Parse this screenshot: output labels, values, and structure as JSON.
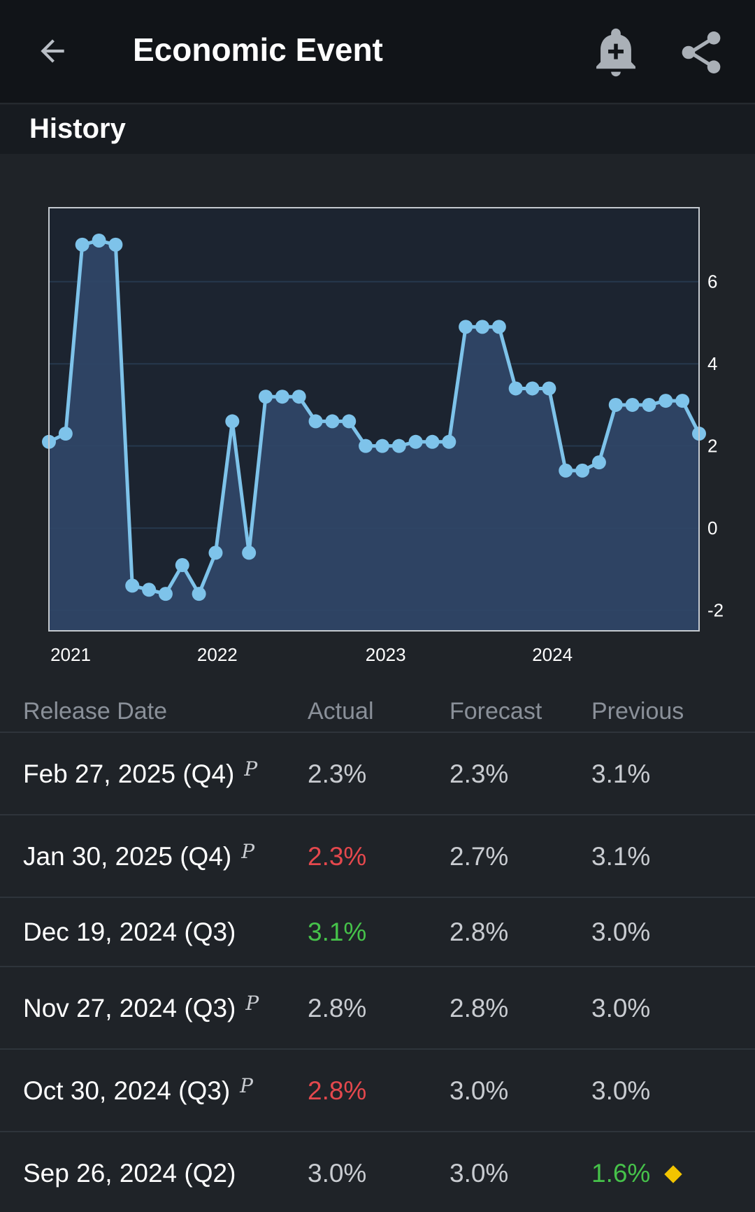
{
  "header": {
    "title": "Economic Event",
    "back_icon": "arrow-left-icon",
    "alert_icon": "bell-plus-icon",
    "share_icon": "share-icon"
  },
  "section": {
    "title": "History"
  },
  "chart_data": {
    "type": "area",
    "title": "",
    "xlabel": "",
    "ylabel": "",
    "x_ticks": [
      "2021",
      "2022",
      "2023",
      "2024"
    ],
    "y_ticks": [
      6,
      4,
      2,
      0,
      -2
    ],
    "ylim": [
      -2.5,
      7.8
    ],
    "y_axis_side": "right",
    "grid": "horizontal",
    "colors": {
      "line": "#7ec3ea",
      "fill": "#2f4666"
    },
    "series": [
      {
        "values": [
          2.1,
          2.3,
          6.9,
          7.0,
          6.9,
          -1.4,
          -1.5,
          -1.6,
          -0.9,
          -1.6,
          -0.6,
          2.6,
          -0.6,
          3.2,
          3.2,
          3.2,
          2.6,
          2.6,
          2.6,
          2.0,
          2.0,
          2.0,
          2.1,
          2.1,
          2.1,
          4.9,
          4.9,
          4.9,
          3.4,
          3.4,
          3.4,
          1.4,
          1.4,
          1.6,
          3.0,
          3.0,
          3.0,
          3.1,
          3.1,
          2.3
        ]
      }
    ],
    "x_tick_indices": [
      1.3,
      10.1,
      20.2,
      30.2
    ]
  },
  "table": {
    "headers": {
      "date": "Release Date",
      "actual": "Actual",
      "forecast": "Forecast",
      "previous": "Previous"
    },
    "rows": [
      {
        "date": "Feb 27, 2025 (Q4)",
        "prelim": "P",
        "actual": "2.3%",
        "forecast": "2.3%",
        "previous": "3.1%",
        "actual_color": "neutral"
      },
      {
        "date": "Jan 30, 2025 (Q4)",
        "prelim": "P",
        "actual": "2.3%",
        "forecast": "2.7%",
        "previous": "3.1%",
        "actual_color": "negative"
      },
      {
        "date": "Dec 19, 2024 (Q3)",
        "prelim": "",
        "actual": "3.1%",
        "forecast": "2.8%",
        "previous": "3.0%",
        "actual_color": "positive"
      },
      {
        "date": "Nov 27, 2024 (Q3)",
        "prelim": "P",
        "actual": "2.8%",
        "forecast": "2.8%",
        "previous": "3.0%",
        "actual_color": "neutral"
      },
      {
        "date": "Oct 30, 2024 (Q3)",
        "prelim": "P",
        "actual": "2.8%",
        "forecast": "3.0%",
        "previous": "3.0%",
        "actual_color": "negative"
      },
      {
        "date": "Sep 26, 2024 (Q2)",
        "prelim": "",
        "actual": "3.0%",
        "forecast": "3.0%",
        "previous": "1.6%",
        "previous_color": "positive",
        "revised_icon": "diamond-icon"
      }
    ]
  }
}
